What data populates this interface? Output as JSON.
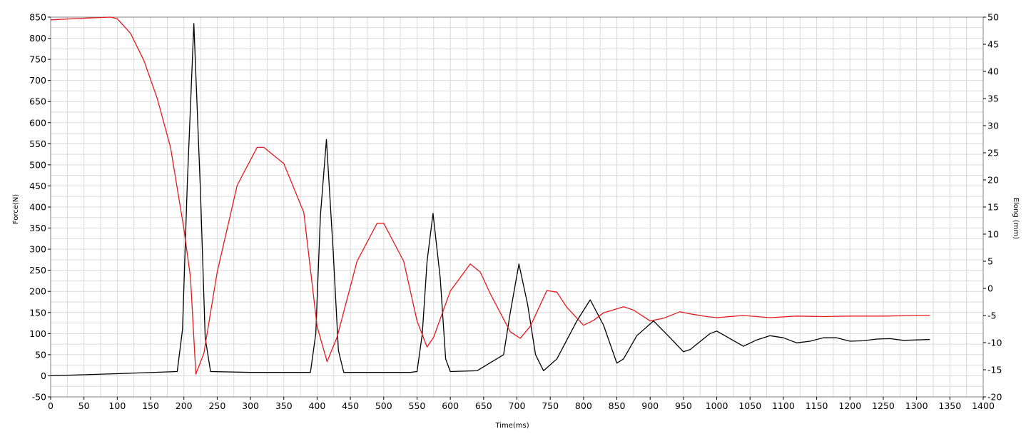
{
  "chart_data": {
    "type": "line",
    "title": "",
    "xlabel": "Time(ms)",
    "ylabel": "Force(N)",
    "y2label": "Elong (mm)",
    "xlim": [
      0,
      1400
    ],
    "ylim": [
      -50,
      850
    ],
    "y2lim": [
      -20,
      50
    ],
    "grid": true,
    "x_ticks": [
      "0",
      "50",
      "100",
      "150",
      "200",
      "250",
      "300",
      "350",
      "400",
      "450",
      "500",
      "550",
      "600",
      "650",
      "700",
      "750",
      "800",
      "850",
      "900",
      "950",
      "1000",
      "1050",
      "1100",
      "1150",
      "1200",
      "1250",
      "1300",
      "1350",
      "1400"
    ],
    "y_ticks": [
      "-50",
      "0",
      "50",
      "100",
      "150",
      "200",
      "250",
      "300",
      "350",
      "400",
      "450",
      "500",
      "550",
      "600",
      "650",
      "700",
      "750",
      "800",
      "850"
    ],
    "y2_ticks": [
      "-20",
      "-15",
      "-10",
      "-5",
      "0",
      "5",
      "10",
      "15",
      "20",
      "25",
      "30",
      "35",
      "40",
      "45",
      "50"
    ],
    "series": [
      {
        "axis": "left",
        "color": "#000000",
        "x": [
          0,
          100,
          190,
          198,
          205,
          215,
          225,
          232,
          240,
          300,
          390,
          398,
          405,
          414,
          424,
          432,
          440,
          540,
          550,
          558,
          565,
          574,
          585,
          593,
          600,
          640,
          680,
          690,
          703,
          716,
          728,
          740,
          760,
          790,
          810,
          830,
          850,
          860,
          880,
          905,
          930,
          950,
          960,
          990,
          1000,
          1020,
          1040,
          1060,
          1080,
          1100,
          1120,
          1140,
          1160,
          1180,
          1200,
          1220,
          1240,
          1260,
          1280,
          1300,
          1320
        ],
        "y": [
          0,
          5,
          10,
          110,
          450,
          835,
          430,
          90,
          10,
          8,
          8,
          100,
          380,
          560,
          300,
          60,
          8,
          8,
          10,
          100,
          270,
          385,
          230,
          40,
          10,
          12,
          50,
          150,
          265,
          170,
          50,
          12,
          40,
          130,
          180,
          120,
          30,
          40,
          95,
          130,
          90,
          57,
          62,
          100,
          106,
          88,
          70,
          85,
          95,
          90,
          78,
          82,
          90,
          90,
          82,
          83,
          87,
          88,
          84,
          85,
          86
        ]
      },
      {
        "axis": "right",
        "color": "#e41a1c",
        "x": [
          0,
          50,
          90,
          100,
          120,
          140,
          160,
          180,
          200,
          210,
          218,
          230,
          250,
          280,
          310,
          320,
          350,
          380,
          400,
          415,
          430,
          460,
          490,
          500,
          530,
          550,
          565,
          575,
          600,
          630,
          645,
          660,
          690,
          705,
          720,
          745,
          760,
          775,
          800,
          815,
          830,
          860,
          875,
          900,
          920,
          945,
          960,
          985,
          1000,
          1040,
          1080,
          1120,
          1160,
          1200,
          1250,
          1300,
          1320
        ],
        "y": [
          49.5,
          49.8,
          50,
          49.7,
          47,
          42,
          35,
          26,
          11,
          2,
          -15.8,
          -12,
          3,
          19,
          26,
          26,
          23,
          14,
          -7,
          -13.5,
          -9,
          5,
          12,
          12,
          5,
          -6,
          -10.8,
          -9,
          -0.5,
          4.5,
          3,
          -1,
          -8,
          -9.2,
          -7,
          -0.4,
          -0.7,
          -3.5,
          -6.8,
          -5.9,
          -4.5,
          -3.4,
          -4,
          -6,
          -5.5,
          -4.3,
          -4.7,
          -5.2,
          -5.4,
          -5,
          -5.4,
          -5.1,
          -5.2,
          -5.1,
          -5.1,
          -5,
          -5
        ]
      }
    ]
  }
}
